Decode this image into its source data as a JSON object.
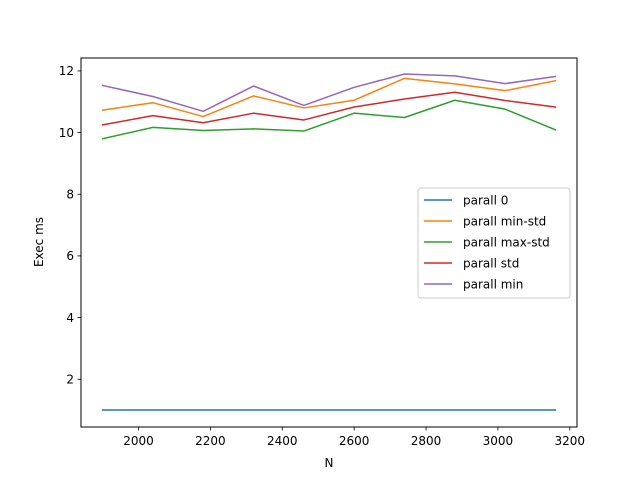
{
  "chart_data": {
    "type": "line",
    "title": "",
    "xlabel": "N",
    "ylabel": "Exec ms",
    "xlim": [
      1840,
      3220
    ],
    "ylim": [
      0.45,
      12.42
    ],
    "x_ticks": [
      2000,
      2200,
      2400,
      2600,
      2800,
      3000,
      3200
    ],
    "y_ticks": [
      2,
      4,
      6,
      8,
      10,
      12
    ],
    "grid": false,
    "legend_position": "center-right",
    "x": [
      1900,
      2040,
      2180,
      2320,
      2460,
      2600,
      2740,
      2880,
      3020,
      3160
    ],
    "series": [
      {
        "name": "parall 0",
        "color": "#1f77b4",
        "values": [
          1.0,
          1.0,
          1.0,
          1.0,
          1.0,
          1.0,
          1.0,
          1.0,
          1.0,
          1.0
        ]
      },
      {
        "name": "parall min-std",
        "color": "#ff7f0e",
        "values": [
          10.73,
          10.97,
          10.52,
          11.19,
          10.8,
          11.05,
          11.76,
          11.58,
          11.36,
          11.68
        ]
      },
      {
        "name": "parall max-std",
        "color": "#2ca02c",
        "values": [
          9.8,
          10.17,
          10.07,
          10.12,
          10.05,
          10.63,
          10.49,
          11.05,
          10.76,
          10.09
        ]
      },
      {
        "name": "parall std",
        "color": "#d62728",
        "values": [
          10.25,
          10.55,
          10.32,
          10.63,
          10.41,
          10.83,
          11.09,
          11.31,
          11.04,
          10.83
        ]
      },
      {
        "name": "parall min",
        "color": "#9467bd",
        "values": [
          11.53,
          11.17,
          10.69,
          11.51,
          10.88,
          11.47,
          11.9,
          11.84,
          11.59,
          11.82
        ]
      }
    ]
  }
}
